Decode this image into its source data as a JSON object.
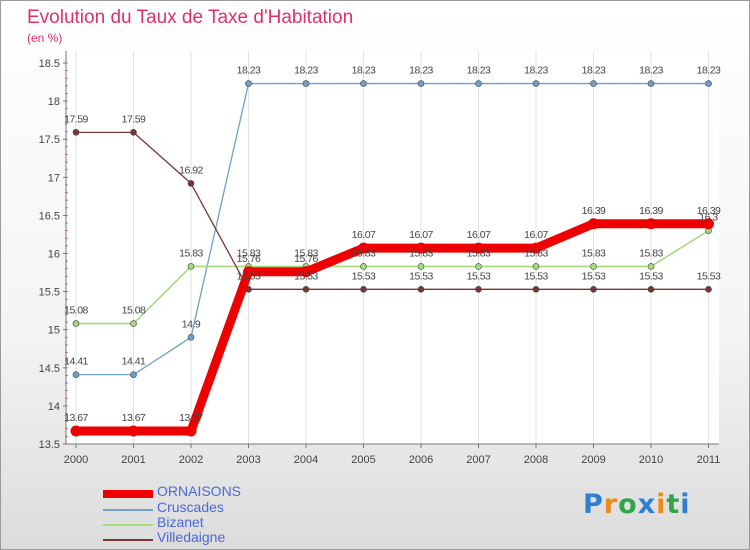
{
  "title": "Evolution du Taux de Taxe d'Habitation",
  "subtitle": "(en %)",
  "logo": {
    "text": "Proxiti",
    "colors": [
      "#2f7fd0",
      "#e98b1a",
      "#2fa64a",
      "#2f7fd0",
      "#e98b1a",
      "#2fa64a",
      "#2f7fd0"
    ]
  },
  "chart_data": {
    "type": "line",
    "title": "Evolution du Taux de Taxe d'Habitation",
    "subtitle": "(en %)",
    "x": [
      "2000",
      "2001",
      "2002",
      "2003",
      "2004",
      "2005",
      "2006",
      "2007",
      "2008",
      "2009",
      "2010",
      "2011"
    ],
    "ylim": [
      13.5,
      18.5
    ],
    "yticks": [
      "13.5",
      "14",
      "14.5",
      "15",
      "15.5",
      "16",
      "16.5",
      "17",
      "17.5",
      "18",
      "18.5"
    ],
    "grid": "vertical",
    "legend_position": "bottom-left",
    "series": [
      {
        "name": "ORNAISONS",
        "color": "#ee0000",
        "width": 9,
        "values": [
          13.67,
          13.67,
          13.67,
          15.76,
          15.76,
          16.07,
          16.07,
          16.07,
          16.07,
          16.39,
          16.39,
          16.39
        ],
        "labels": [
          "13.67",
          "13.67",
          "13.67",
          "15.76",
          "15.76",
          "16.07",
          "16.07",
          "16.07",
          "16.07",
          "16.39",
          "16.39",
          "16.39"
        ]
      },
      {
        "name": "Cruscades",
        "color": "#6fa0cc",
        "width": 1.3,
        "values": [
          14.41,
          14.41,
          14.9,
          18.23,
          18.23,
          18.23,
          18.23,
          18.23,
          18.23,
          18.23,
          18.23,
          18.23
        ],
        "labels": [
          "14.41",
          "14.41",
          "14.9",
          "18.23",
          "18.23",
          "18.23",
          "18.23",
          "18.23",
          "18.23",
          "18.23",
          "18.23",
          "18.23"
        ]
      },
      {
        "name": "Bizanet",
        "color": "#a2dc7c",
        "width": 1.6,
        "values": [
          15.08,
          15.08,
          15.83,
          15.83,
          15.83,
          15.83,
          15.83,
          15.83,
          15.83,
          15.83,
          15.83,
          16.3
        ],
        "labels": [
          "15.08",
          "15.08",
          "15.83",
          "15.83",
          "15.83",
          "15.83",
          "15.83",
          "15.83",
          "15.83",
          "15.83",
          "15.83",
          "16.3"
        ]
      },
      {
        "name": "Villedaigne",
        "color": "#7a3535",
        "width": 1.3,
        "values": [
          17.59,
          17.59,
          16.92,
          15.53,
          15.53,
          15.53,
          15.53,
          15.53,
          15.53,
          15.53,
          15.53,
          15.53
        ],
        "labels": [
          "17.59",
          "17.59",
          "16.92",
          "15.53",
          "15.53",
          "15.53",
          "15.53",
          "15.53",
          "15.53",
          "15.53",
          "15.53",
          "15.53"
        ]
      }
    ]
  }
}
